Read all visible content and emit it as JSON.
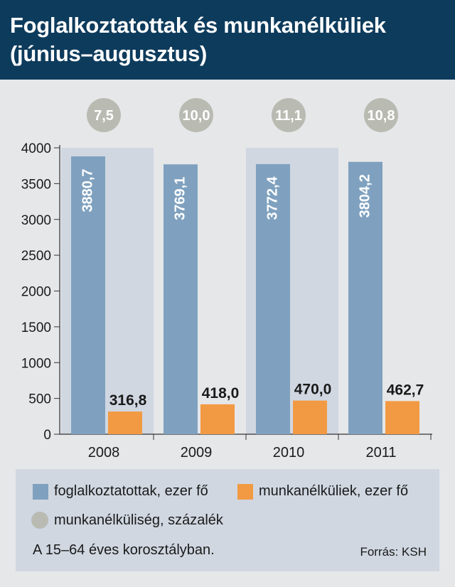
{
  "title_lines": [
    "Foglalkoztatottak és munkanélküliek",
    "(június–augusztus)"
  ],
  "colors": {
    "header_bg": "#0d3b5c",
    "employed": "#7fa1bf",
    "unemployed": "#f29a43",
    "rate_circle": "#b9bbb2",
    "band": "#d0d7e1"
  },
  "chart_data": {
    "type": "bar",
    "title": "Foglalkoztatottak és munkanélküliek (június–augusztus)",
    "categories": [
      "2008",
      "2009",
      "2010",
      "2011"
    ],
    "series": [
      {
        "name": "foglalkoztatottak, ezer fő",
        "values": [
          3880.7,
          3769.1,
          3772.4,
          3804.2
        ],
        "labels": [
          "3880,7",
          "3769,1",
          "3772,4",
          "3804,2"
        ]
      },
      {
        "name": "munkanélküliek, ezer fő",
        "values": [
          316.8,
          418.0,
          470.0,
          462.7
        ],
        "labels": [
          "316,8",
          "418,0",
          "470,0",
          "462,7"
        ]
      }
    ],
    "rate": {
      "name": "munkanélküliség, százalék",
      "values": [
        7.5,
        10.0,
        11.1,
        10.8
      ],
      "labels": [
        "7,5",
        "10,0",
        "11,1",
        "10,8"
      ]
    },
    "yticks": [
      0,
      500,
      1000,
      1500,
      2000,
      2500,
      3000,
      3500,
      4000
    ],
    "ylim": [
      0,
      4000
    ],
    "grid": false,
    "legend_position": "bottom"
  },
  "legend": {
    "employed": "foglalkoztatottak, ezer fő",
    "unemployed": "munkanélküliek, ezer fő",
    "rate": "munkanélküliség, százalék"
  },
  "note": "A 15–64 éves korosztályban.",
  "source": "Forrás: KSH"
}
